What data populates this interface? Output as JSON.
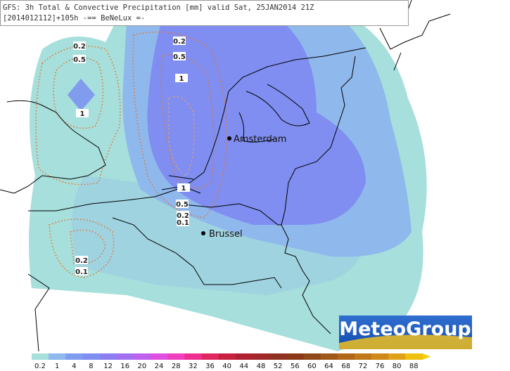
{
  "header": {
    "line1": "GFS: 3h Total & Convective Precipitation [mm] valid Sat, 25JAN2014 21Z",
    "line2": "[2014012112]+105h -== BeNeLux =-"
  },
  "cities": [
    {
      "name": "Amsterdam"
    },
    {
      "name": "Brussel"
    }
  ],
  "contour_labels": [
    "0.2",
    "0.5",
    "1",
    "0.2",
    "0.5",
    "1",
    "1",
    "0.5",
    "0.2",
    "0.1",
    "0.2",
    "0.1"
  ],
  "legend": {
    "labels": [
      "0.2",
      "1",
      "4",
      "8",
      "12",
      "16",
      "20",
      "24",
      "28",
      "32",
      "36",
      "40",
      "44",
      "48",
      "52",
      "56",
      "60",
      "64",
      "68",
      "72",
      "76",
      "80",
      "88"
    ]
  },
  "logo": "MeteoGroup"
}
